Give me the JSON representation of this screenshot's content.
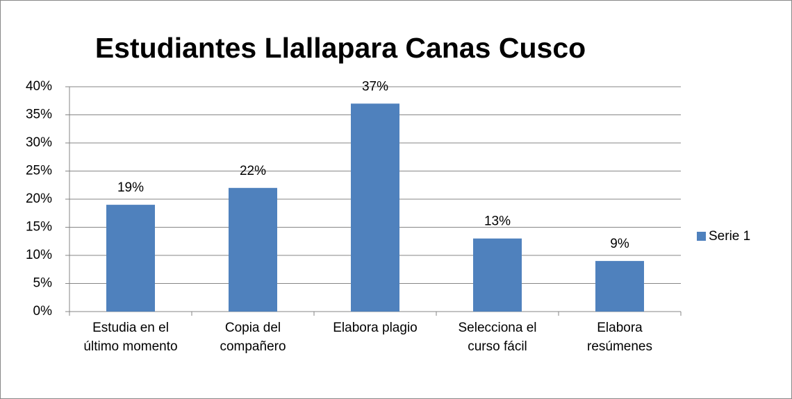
{
  "chart_data": {
    "type": "bar",
    "title": "Estudiantes Llallapara Canas Cusco",
    "categories": [
      "Estudia en el último momento",
      "Copia del compañero",
      "Elabora plagio",
      "Selecciona el curso fácil",
      "Elabora resúmenes"
    ],
    "series": [
      {
        "name": "Serie 1",
        "color": "#4f81bd",
        "values": [
          19,
          22,
          37,
          13,
          9
        ],
        "value_labels": [
          "19%",
          "22%",
          "37%",
          "13%",
          "9%"
        ]
      }
    ],
    "ylim": [
      0,
      40
    ],
    "yticks": [
      {
        "value": 0,
        "label": "0%"
      },
      {
        "value": 5,
        "label": "5%"
      },
      {
        "value": 10,
        "label": "10%"
      },
      {
        "value": 15,
        "label": "15%"
      },
      {
        "value": 20,
        "label": "20%"
      },
      {
        "value": 25,
        "label": "25%"
      },
      {
        "value": 30,
        "label": "30%"
      },
      {
        "value": 35,
        "label": "35%"
      },
      {
        "value": 40,
        "label": "40%"
      }
    ],
    "grid": true,
    "legend": "right"
  }
}
